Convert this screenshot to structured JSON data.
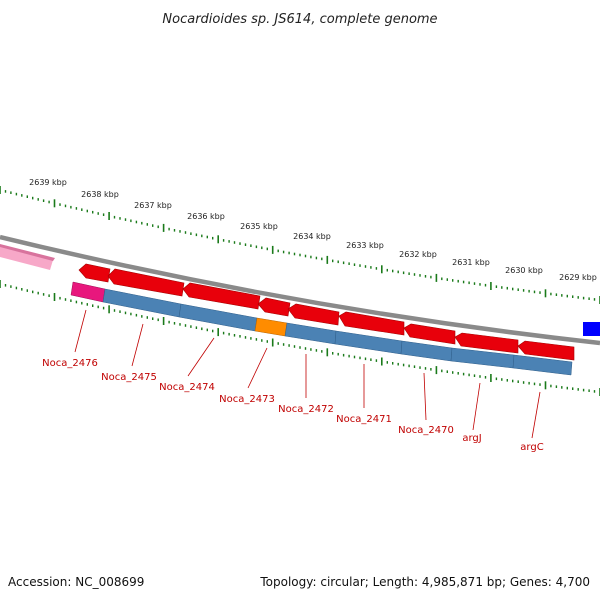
{
  "title": "Nocardioides sp. JS614, complete genome",
  "ruler": {
    "labels": [
      "2639 kbp",
      "2638 kbp",
      "2637 kbp",
      "2636 kbp",
      "2635 kbp",
      "2634 kbp",
      "2633 kbp",
      "2632 kbp",
      "2631 kbp",
      "2630 kbp",
      "2629 kbp"
    ],
    "tick_color": "#1a7a1a"
  },
  "backbone_color": "#8a8a8a",
  "colors": {
    "gene_forward": "#e8000b",
    "cds": "#4b82b4",
    "cds_highlight": "#ff8c00",
    "cds_magenta": "#e8177d",
    "pink_feature": "#f7a8c8",
    "blue_feature": "#0000ff",
    "label": "#c00000"
  },
  "gene_labels": [
    "Noca_2476",
    "Noca_2475",
    "Noca_2474",
    "Noca_2473",
    "Noca_2472",
    "Noca_2471",
    "Noca_2470",
    "argJ",
    "argC"
  ],
  "footer": {
    "accession": "Accession: NC_008699",
    "summary": "Topology: circular; Length: 4,985,871 bp; Genes: 4,700"
  }
}
